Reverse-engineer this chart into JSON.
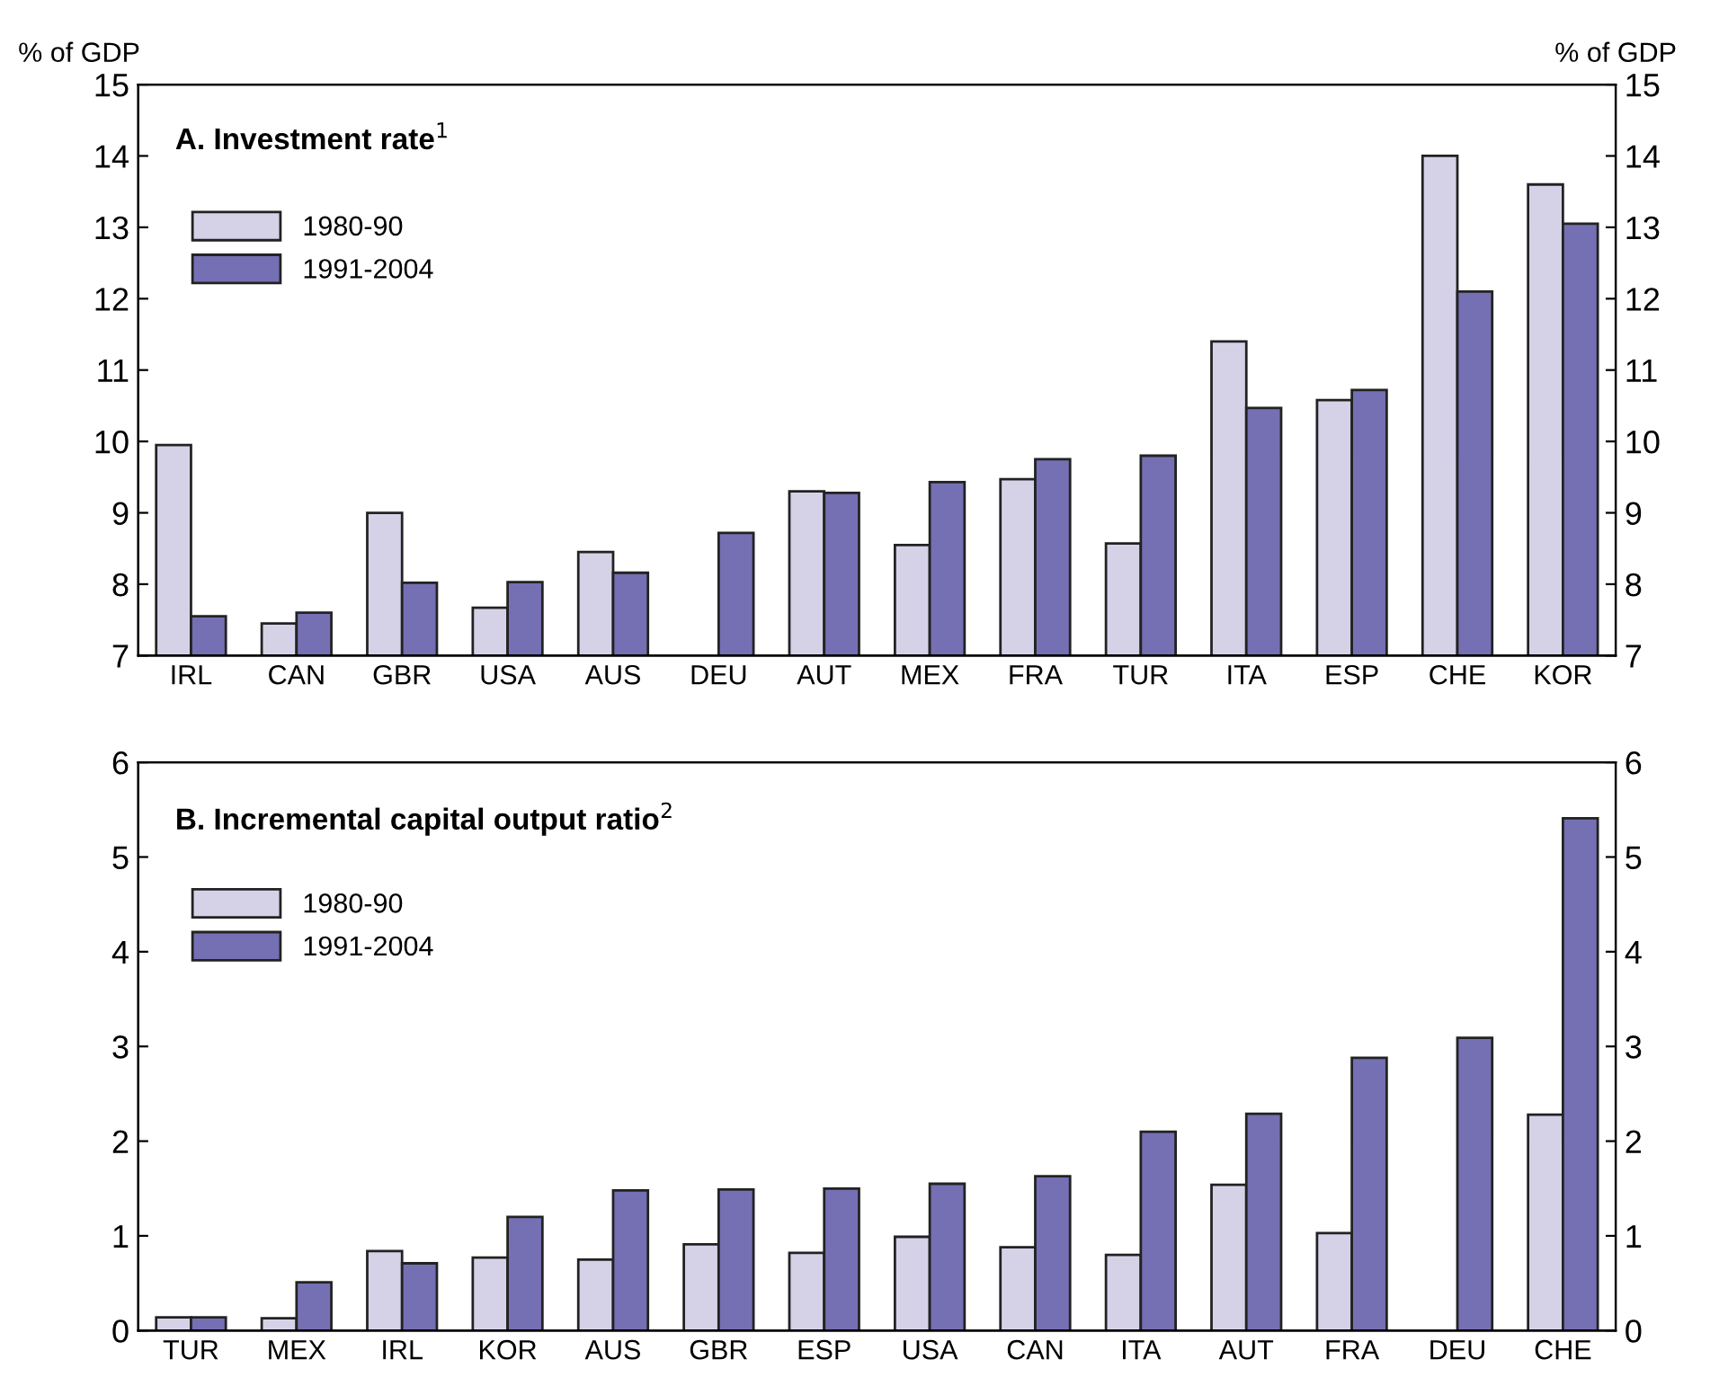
{
  "chart_data": [
    {
      "type": "bar",
      "title": "A. Investment rate$^{1}$",
      "ylabel": "% of GDP",
      "y2label": "% of GDP",
      "categories": [
        "IRL",
        "CAN",
        "GBR",
        "USA",
        "AUS",
        "DEU",
        "AUT",
        "MEX",
        "FRA",
        "TUR",
        "ITA",
        "ESP",
        "CHE",
        "KOR"
      ],
      "series": [
        {
          "name": "1980-90",
          "color": "#d5d2e8",
          "values": [
            9.95,
            7.45,
            9.0,
            7.67,
            8.45,
            null,
            9.3,
            8.55,
            9.47,
            8.57,
            11.4,
            10.58,
            14.0,
            13.6
          ]
        },
        {
          "name": "1991-2004",
          "color": "#7570b3",
          "values": [
            7.55,
            7.6,
            8.02,
            8.03,
            8.16,
            8.72,
            9.28,
            9.43,
            9.75,
            9.8,
            10.47,
            10.72,
            12.1,
            13.05
          ]
        }
      ],
      "ylim": [
        7,
        15
      ],
      "yticks": [
        7,
        8,
        9,
        10,
        11,
        12,
        13,
        14,
        15
      ],
      "y2lim": [
        7,
        15
      ],
      "y2ticks": [
        7,
        8,
        9,
        10,
        11,
        12,
        13,
        14,
        15
      ],
      "legend": "top left",
      "grid": false
    },
    {
      "type": "bar",
      "title": "B. Incremental capital output ratio$^{2}$",
      "categories": [
        "TUR",
        "MEX",
        "IRL",
        "KOR",
        "AUS",
        "GBR",
        "ESP",
        "USA",
        "CAN",
        "ITA",
        "AUT",
        "FRA",
        "DEU",
        "CHE"
      ],
      "series": [
        {
          "name": "1980-90",
          "color": "#d5d2e8",
          "values": [
            0.14,
            0.13,
            0.84,
            0.77,
            0.75,
            0.91,
            0.82,
            0.99,
            0.88,
            0.8,
            1.54,
            1.03,
            null,
            2.28
          ]
        },
        {
          "name": "1991-2004",
          "color": "#7570b3",
          "values": [
            0.14,
            0.51,
            0.71,
            1.2,
            1.48,
            1.49,
            1.5,
            1.55,
            1.63,
            2.1,
            2.29,
            2.88,
            3.09,
            5.41
          ]
        }
      ],
      "ylim": [
        0,
        6
      ],
      "yticks": [
        0,
        1,
        2,
        3,
        4,
        5,
        6
      ],
      "y2lim": [
        0,
        6
      ],
      "y2ticks": [
        0,
        1,
        2,
        3,
        4,
        5,
        6
      ],
      "legend": "top left",
      "grid": false
    }
  ]
}
